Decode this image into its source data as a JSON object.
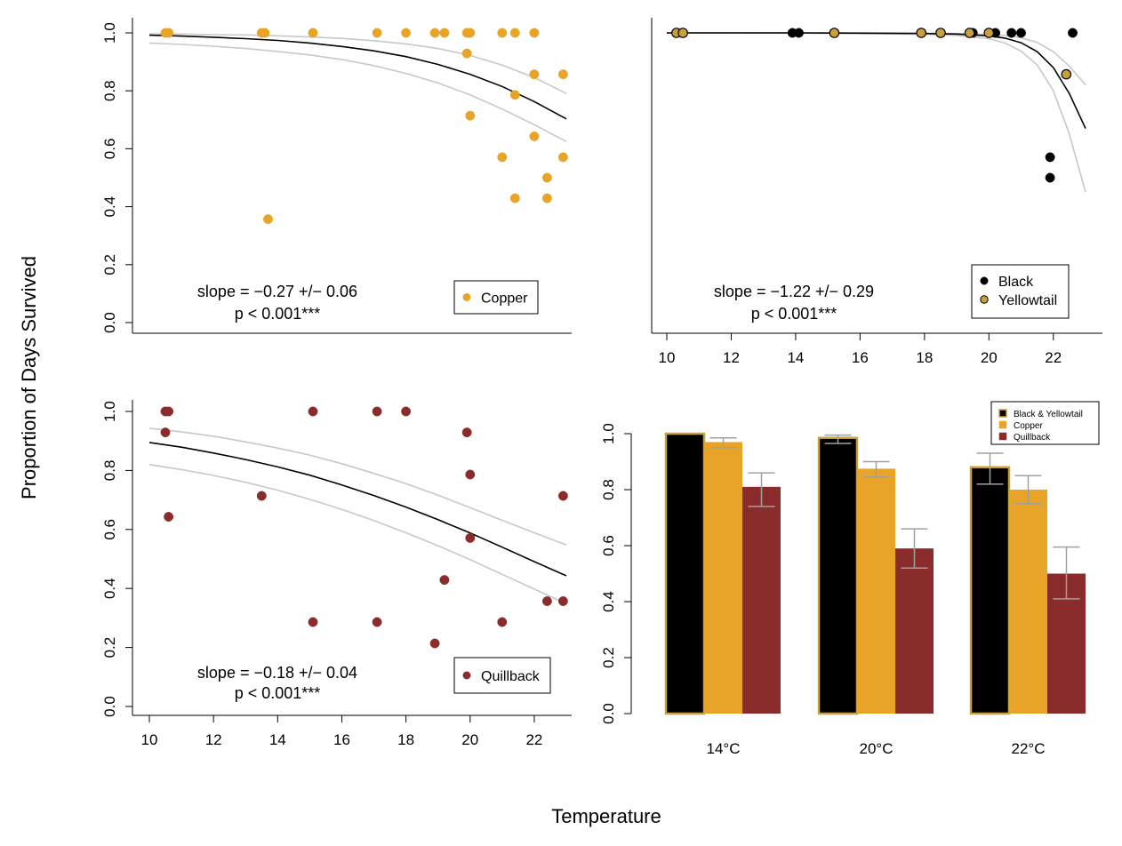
{
  "figure": {
    "xlabel": "Temperature",
    "ylabel": "Proportion of Days Survived"
  },
  "colors": {
    "copper": "#E8A427",
    "quillback": "#8B2C2C",
    "black": "#000000",
    "yellowtail": "#C9A03C",
    "ci": "#C8C8C8",
    "errbar": "#A0A0A0"
  },
  "chart_data": [
    {
      "id": "copper",
      "type": "scatter",
      "xlim": [
        10,
        23
      ],
      "ylim": [
        0,
        1
      ],
      "yticks": [
        "0.0",
        "0.2",
        "0.4",
        "0.6",
        "0.8",
        "1.0"
      ],
      "xticks": [],
      "legend": {
        "position": "bottom-right",
        "entries": [
          "Copper"
        ]
      },
      "annotation": [
        "slope = −0.27 +/− 0.06",
        "p < 0.001***"
      ],
      "series": [
        {
          "name": "Copper",
          "points": [
            [
              10.5,
              1.0
            ],
            [
              10.6,
              1.0
            ],
            [
              13.5,
              1.0
            ],
            [
              13.6,
              1.0
            ],
            [
              13.7,
              0.357
            ],
            [
              15.1,
              1.0
            ],
            [
              17.1,
              1.0
            ],
            [
              18.0,
              1.0
            ],
            [
              18.9,
              1.0
            ],
            [
              19.2,
              1.0
            ],
            [
              19.9,
              1.0
            ],
            [
              20.0,
              1.0
            ],
            [
              19.9,
              0.929
            ],
            [
              20.0,
              0.714
            ],
            [
              21.0,
              1.0
            ],
            [
              21.4,
              1.0
            ],
            [
              21.0,
              0.571
            ],
            [
              21.4,
              0.786
            ],
            [
              21.4,
              0.429
            ],
            [
              22.0,
              1.0
            ],
            [
              22.0,
              0.857
            ],
            [
              22.0,
              0.643
            ],
            [
              22.4,
              0.5
            ],
            [
              22.4,
              0.429
            ],
            [
              22.9,
              0.857
            ],
            [
              22.9,
              0.571
            ]
          ]
        }
      ],
      "fit": {
        "x": [
          10,
          11,
          12,
          13,
          14,
          15,
          16,
          17,
          18,
          19,
          20,
          21,
          22,
          23
        ],
        "y": [
          0.992,
          0.989,
          0.985,
          0.98,
          0.974,
          0.965,
          0.953,
          0.938,
          0.918,
          0.891,
          0.857,
          0.815,
          0.763,
          0.703
        ],
        "lower": [
          0.965,
          0.96,
          0.954,
          0.946,
          0.936,
          0.924,
          0.908,
          0.887,
          0.86,
          0.827,
          0.786,
          0.737,
          0.683,
          0.625
        ],
        "upper": [
          0.997,
          0.996,
          0.994,
          0.993,
          0.99,
          0.986,
          0.981,
          0.973,
          0.962,
          0.946,
          0.922,
          0.889,
          0.846,
          0.791
        ]
      }
    },
    {
      "id": "black-yellowtail",
      "type": "scatter",
      "xlim": [
        10,
        23
      ],
      "ylim": [
        0,
        1
      ],
      "yticks": [],
      "xticks": [
        "10",
        "12",
        "14",
        "16",
        "18",
        "20",
        "22"
      ],
      "legend": {
        "position": "bottom-right",
        "entries": [
          "Black",
          "Yellowtail"
        ]
      },
      "annotation": [
        "slope = −1.22 +/− 0.29",
        "p < 0.001***"
      ],
      "series": [
        {
          "name": "Black",
          "points": [
            [
              10.3,
              1.0
            ],
            [
              10.5,
              1.0
            ],
            [
              13.9,
              1.0
            ],
            [
              14.1,
              1.0
            ],
            [
              15.2,
              1.0
            ],
            [
              17.9,
              1.0
            ],
            [
              18.5,
              1.0
            ],
            [
              19.5,
              1.0
            ],
            [
              20.2,
              1.0
            ],
            [
              20.7,
              1.0
            ],
            [
              21.0,
              1.0
            ],
            [
              21.9,
              0.571
            ],
            [
              21.9,
              0.5
            ],
            [
              22.6,
              1.0
            ]
          ]
        },
        {
          "name": "Yellowtail",
          "points": [
            [
              10.3,
              1.0
            ],
            [
              10.5,
              1.0
            ],
            [
              15.2,
              1.0
            ],
            [
              17.9,
              1.0
            ],
            [
              18.5,
              1.0
            ],
            [
              19.4,
              1.0
            ],
            [
              20.0,
              1.0
            ],
            [
              22.4,
              0.857
            ]
          ]
        }
      ],
      "fit": {
        "x": [
          10,
          14,
          16,
          18,
          19,
          20,
          20.5,
          21,
          21.5,
          22,
          22.5,
          23
        ],
        "y": [
          1.0,
          1.0,
          0.999,
          0.998,
          0.996,
          0.99,
          0.982,
          0.966,
          0.935,
          0.88,
          0.79,
          0.67
        ],
        "lower": [
          1.0,
          0.999,
          0.998,
          0.995,
          0.991,
          0.98,
          0.965,
          0.937,
          0.889,
          0.8,
          0.65,
          0.45
        ],
        "upper": [
          1.0,
          1.0,
          1.0,
          0.999,
          0.998,
          0.995,
          0.991,
          0.983,
          0.967,
          0.935,
          0.885,
          0.82
        ]
      }
    },
    {
      "id": "quillback",
      "type": "scatter",
      "xlim": [
        10,
        23
      ],
      "ylim": [
        0,
        1
      ],
      "yticks": [
        "0.0",
        "0.2",
        "0.4",
        "0.6",
        "0.8",
        "1.0"
      ],
      "xticks": [
        "10",
        "12",
        "14",
        "16",
        "18",
        "20",
        "22"
      ],
      "legend": {
        "position": "bottom-right",
        "entries": [
          "Quillback"
        ]
      },
      "annotation": [
        "slope = −0.18 +/− 0.04",
        "p < 0.001***"
      ],
      "series": [
        {
          "name": "Quillback",
          "points": [
            [
              10.5,
              1.0
            ],
            [
              10.6,
              1.0
            ],
            [
              10.5,
              0.929
            ],
            [
              10.6,
              0.643
            ],
            [
              13.5,
              0.714
            ],
            [
              15.1,
              1.0
            ],
            [
              15.1,
              0.286
            ],
            [
              17.1,
              1.0
            ],
            [
              17.1,
              0.286
            ],
            [
              18.0,
              1.0
            ],
            [
              18.9,
              0.214
            ],
            [
              19.2,
              0.429
            ],
            [
              19.9,
              0.929
            ],
            [
              20.0,
              0.786
            ],
            [
              20.0,
              0.571
            ],
            [
              21.0,
              0.286
            ],
            [
              22.4,
              0.357
            ],
            [
              22.9,
              0.714
            ],
            [
              22.9,
              0.357
            ]
          ]
        }
      ],
      "fit": {
        "x": [
          10,
          11,
          12,
          13,
          14,
          15,
          16,
          17,
          18,
          19,
          20,
          21,
          22,
          23
        ],
        "y": [
          0.895,
          0.879,
          0.859,
          0.837,
          0.812,
          0.784,
          0.751,
          0.715,
          0.676,
          0.633,
          0.588,
          0.54,
          0.491,
          0.443
        ],
        "lower": [
          0.82,
          0.803,
          0.783,
          0.76,
          0.733,
          0.702,
          0.668,
          0.63,
          0.589,
          0.545,
          0.498,
          0.448,
          0.398,
          0.348
        ],
        "upper": [
          0.943,
          0.931,
          0.916,
          0.897,
          0.876,
          0.852,
          0.823,
          0.79,
          0.755,
          0.716,
          0.674,
          0.631,
          0.589,
          0.548
        ]
      }
    },
    {
      "id": "bars",
      "type": "bar",
      "categories": [
        "14°C",
        "20°C",
        "22°C"
      ],
      "ylim": [
        0,
        1
      ],
      "yticks": [
        "0.0",
        "0.2",
        "0.4",
        "0.6",
        "0.8",
        "1.0"
      ],
      "legend": {
        "position": "top-right",
        "entries": [
          "Black & Yellowtail",
          "Copper",
          "Quillback"
        ]
      },
      "series": [
        {
          "name": "Black & Yellowtail",
          "values": [
            1.0,
            0.985,
            0.88
          ],
          "err_low": [
            1.0,
            0.965,
            0.82
          ],
          "err_high": [
            1.0,
            0.995,
            0.93
          ]
        },
        {
          "name": "Copper",
          "values": [
            0.97,
            0.875,
            0.8
          ],
          "err_low": [
            0.95,
            0.845,
            0.75
          ],
          "err_high": [
            0.985,
            0.9,
            0.85
          ]
        },
        {
          "name": "Quillback",
          "values": [
            0.81,
            0.59,
            0.5
          ],
          "err_low": [
            0.74,
            0.52,
            0.41
          ],
          "err_high": [
            0.86,
            0.66,
            0.595
          ]
        }
      ]
    }
  ]
}
